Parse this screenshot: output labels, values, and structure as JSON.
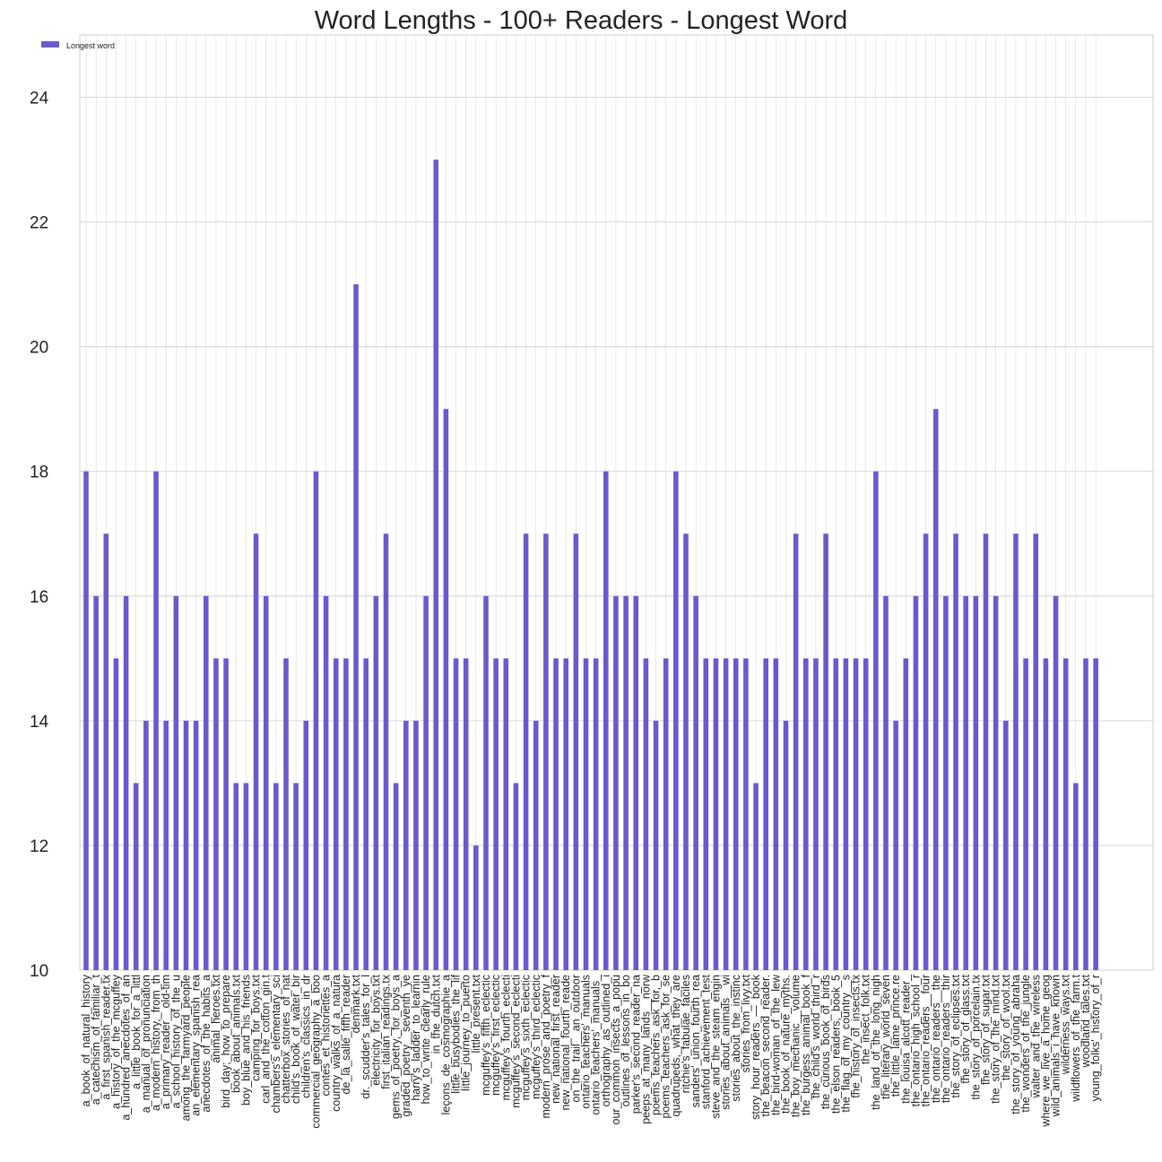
{
  "chart_data": {
    "type": "bar",
    "title": "Word Lengths - 100+ Readers - Longest Word",
    "xlabel": "",
    "ylabel": "",
    "ylim": [
      10,
      25
    ],
    "yticks": [
      10,
      12,
      14,
      16,
      18,
      20,
      22,
      24
    ],
    "grid": true,
    "legend_position": "top-left",
    "bar_color": "#6a5acd",
    "categories": [
      "a_book_of_natural_history",
      "a_catechism_of_familiar_t",
      "a_first_spanish_reader.tx",
      "a_history_of_the_mcguffey",
      "a_hundred_anecdotes_of_an",
      "a_little_book_for_a_littl",
      "a_manual_of_pronunciation",
      "a_modern_history,_from_th",
      "a_primary_reader__old-tim",
      "a_school_history_of_the_u",
      "among_the_farmyard_people",
      "an_elementary_spanish_rea",
      "anecdotes_of_the_habits_a",
      "animal_heroes.txt",
      "bird_day;_how_to_prepare",
      "book_about_animals.txt",
      "boy_blue_and_his_friends",
      "camping_for_boys.txt",
      "carl_and_the_cotton_gin.t",
      "chambers's_elementary_sci",
      "chatterbox_stories_of_nat",
      "child's_book_of_water_bir",
      "children's_classics_in_dr",
      "commercial_geography_a_boo",
      "contes_et_historiettes_a",
      "country_walks_of_a_natura",
      "de_la_salle_fifth_reader",
      "denmark.txt",
      "dr._scudder's_tales_for_l",
      "electricity_for_boys.txt",
      "first_italian_readings.tx",
      "gems_of_poetry,_for_boys_a",
      "graded_poetry__seventh_ye",
      "harry's_ladder_to_learnin",
      "how_to_write_clearly_rule",
      "in_the_dutch.txt",
      "leçons_de_cosmographie_a",
      "little_busybodies_the_lif",
      "little_journey_to_puerto",
      "little_present.txt",
      "mcguffey's_fifth_eclectic",
      "mcguffey's_first_eclectic",
      "mcguffey's_fourth_eclecti",
      "mcguffey's_second_eclecti",
      "mcguffey's_sixth_eclectic",
      "mcguffey's_third_eclectic",
      "modern_prose_and_poetry_f",
      "new_national_first_reader",
      "new_national_fourth_reade",
      "on_the_trail__an_outdoor",
      "ontario_teachers'_manuals",
      "ontario_teachers'_manuals_",
      "orthography_as_outlined_i",
      "our_common_insects_a_popu",
      "outlines_of_lessons_in_bo",
      "parker's_second_reader_na",
      "peeps_at_many_lands__norw",
      "poems_teachers_ask_for,_b",
      "poems_teachers_ask_for_se",
      "quadrupeds,_what_they_are",
      "ritchie's_fabulae_faciles",
      "sanders'_union_fourth_rea",
      "stanford_achievement_test",
      "steve_and_the_steam_engin",
      "stories_about_animals__wi",
      "stories_about_the_instinc",
      "stories_from_livy.txt",
      "story_hour_readers_—_book",
      "the_beacon_second_reader.",
      "the_bird-woman_of_the_lew",
      "the_book_of_nature_myths.",
      "the_boy_mechanic__volume",
      "the_burgess_animal_book_f",
      "the_child's_world_third_r",
      "the_curious_book_of_birds",
      "the_elson_readers,_book_5",
      "the_flag_of_my_country__s",
      "the_history_of_insects.tx",
      "the_insect_folk.txt",
      "the_land_of_the_long_nigh",
      "the_literary_world_seven",
      "the_little_lame_prince.re",
      "the_louisa_alcott_reader_",
      "the_ontario_high_school_r",
      "the_ontario_readers__four",
      "the_ontario_readers__the",
      "the_ontario_readers__thir",
      "the_story_of_eclipses.txt",
      "the_story_of_glass.txt",
      "the_story_of_porcelain.tx",
      "the_story_of_sugar.txt",
      "the_story_of_the_mind.txt",
      "the_story_of_wool.txt",
      "the_story_of_young_abraha",
      "the_wonders_of_the_jungle",
      "walter_and_the_wireless",
      "where_we_live_a_home_geog",
      "wild_animals_i_have_known",
      "wilderness_ways.txt",
      "wildflowers_of_the_farm.t",
      "woodland_tales.txt",
      "young_folks'_history_of_r"
    ],
    "series": [
      {
        "name": "Longest word",
        "values": [
          18,
          16,
          17,
          15,
          16,
          13,
          14,
          18,
          14,
          16,
          14,
          14,
          16,
          15,
          15,
          13,
          13,
          17,
          16,
          13,
          15,
          13,
          14,
          18,
          16,
          15,
          15,
          21,
          15,
          16,
          17,
          13,
          14,
          14,
          16,
          23,
          19,
          15,
          15,
          12,
          16,
          15,
          15,
          13,
          17,
          14,
          17,
          15,
          15,
          17,
          15,
          15,
          18,
          16,
          16,
          16,
          15,
          14,
          15,
          18,
          17,
          16,
          15,
          15,
          15,
          15,
          15,
          13,
          15,
          15,
          14,
          17,
          15,
          15,
          17,
          15,
          15,
          15,
          15,
          18,
          16,
          14,
          15,
          16,
          17,
          19,
          16,
          17,
          16,
          16,
          17,
          16,
          14,
          17,
          15,
          17,
          15,
          16,
          15,
          13,
          15,
          15
        ]
      }
    ]
  }
}
